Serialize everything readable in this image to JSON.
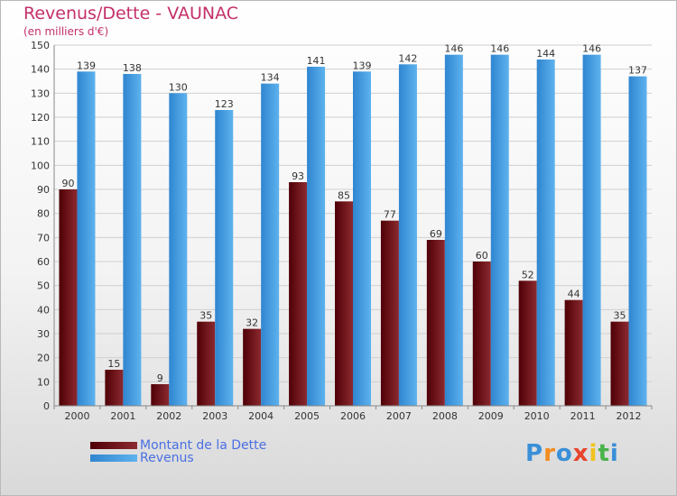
{
  "header": {
    "title": "Revenus/Dette - VAUNAC",
    "subtitle": "(en milliers d'€)"
  },
  "chart_data": {
    "type": "bar",
    "title": "Revenus/Dette - VAUNAC",
    "subtitle": "(en milliers d'€)",
    "categories": [
      "2000",
      "2001",
      "2002",
      "2003",
      "2004",
      "2005",
      "2006",
      "2007",
      "2008",
      "2009",
      "2010",
      "2011",
      "2012"
    ],
    "series": [
      {
        "name": "Montant de la Dette",
        "color": "#6b0f14",
        "values": [
          90,
          15,
          9,
          35,
          32,
          93,
          85,
          77,
          69,
          60,
          52,
          44,
          35
        ]
      },
      {
        "name": "Revenus",
        "color": "#4aa3e6",
        "values": [
          139,
          138,
          130,
          123,
          134,
          141,
          139,
          142,
          146,
          146,
          144,
          146,
          137
        ]
      }
    ],
    "ylim": [
      0,
      150
    ],
    "yticks": [
      0,
      10,
      20,
      30,
      40,
      50,
      60,
      70,
      80,
      90,
      100,
      110,
      120,
      130,
      140,
      150
    ],
    "grid": true,
    "legend_position": "bottom-left"
  },
  "legend": {
    "items": [
      {
        "label": "Montant de la Dette",
        "color": "#6b0f14"
      },
      {
        "label": "Revenus",
        "color": "#4aa3e6"
      }
    ]
  },
  "logo": {
    "letters": [
      "P",
      "r",
      "o",
      "x",
      "i",
      "t",
      "i"
    ],
    "colors": [
      "#3a8fd8",
      "#f28c1e",
      "#3a8fd8",
      "#e8452c",
      "#f2c21e",
      "#4bb34b",
      "#3a8fd8"
    ]
  }
}
